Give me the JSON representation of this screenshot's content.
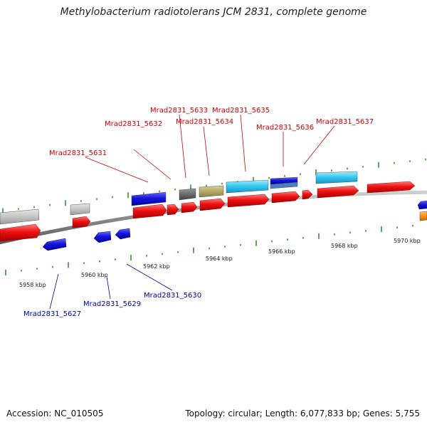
{
  "title": "Methylobacterium radiotolerans JCM 2831, complete genome",
  "footer": {
    "accession": "Accession: NC_010505",
    "summary": "Topology: circular; Length: 6,077,833 bp; Genes: 5,755"
  },
  "colors": {
    "forward_label": "#cc0000",
    "reverse_label": "#0000aa",
    "backbone": "#7a7a7a",
    "tick": "#228b22"
  },
  "scale_labels": [
    "5958 kbp",
    "5960 kbp",
    "5962 kbp",
    "5964 kbp",
    "5966 kbp",
    "5968 kbp",
    "5970 kbp"
  ],
  "gene_labels_forward": [
    "Mrad2831_5631",
    "Mrad2831_5632",
    "Mrad2831_5633",
    "Mrad2831_5634",
    "Mrad2831_5635",
    "Mrad2831_5636",
    "Mrad2831_5637"
  ],
  "gene_labels_reverse": [
    "Mrad2831_5627",
    "Mrad2831_5629",
    "Mrad2831_5630"
  ]
}
